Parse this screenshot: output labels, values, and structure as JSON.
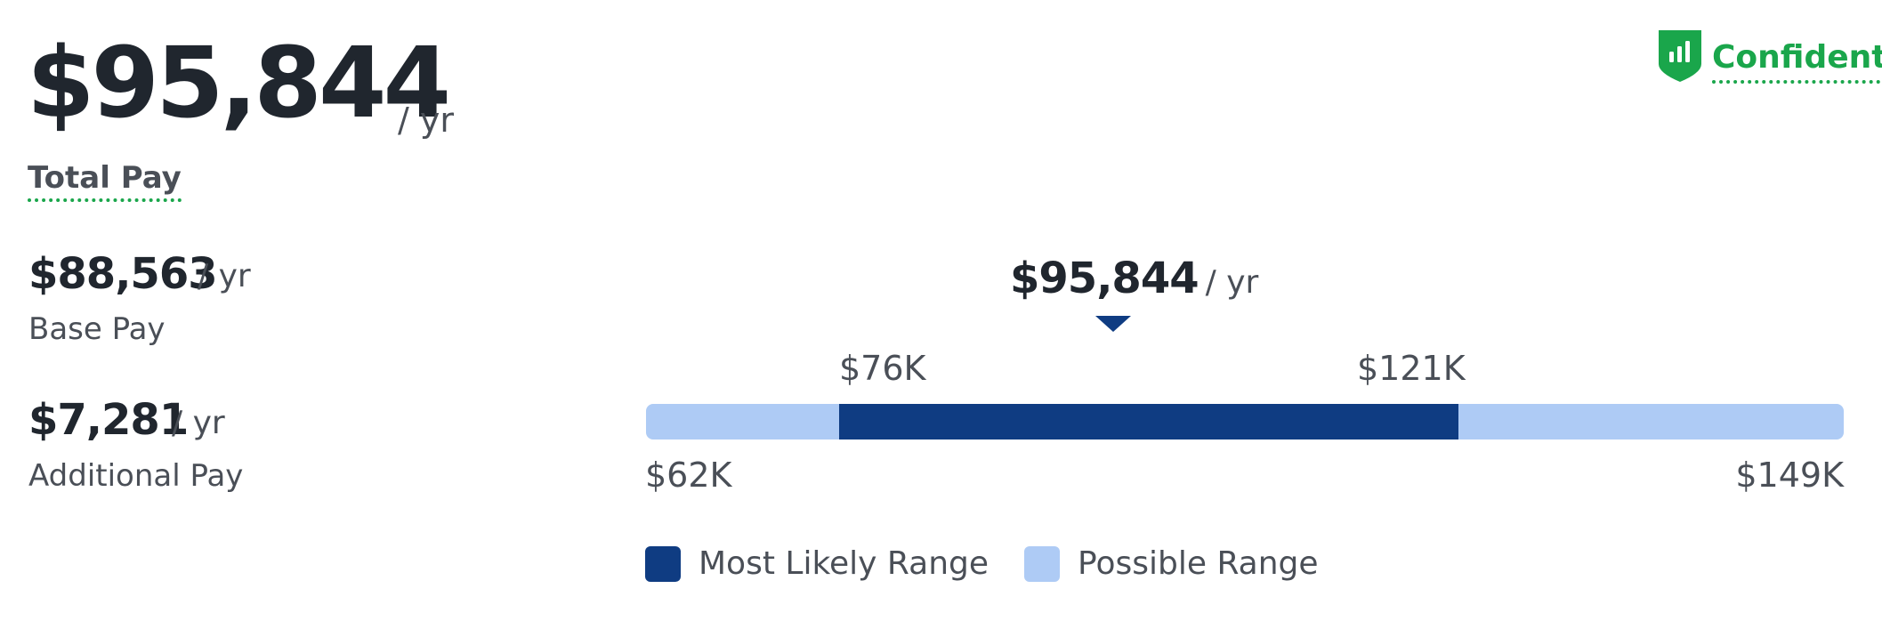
{
  "total": {
    "amount": "$95,844",
    "unit": "/ yr",
    "label": "Total Pay"
  },
  "base": {
    "amount": "$88,563",
    "unit": "/ yr",
    "label": "Base Pay"
  },
  "additional": {
    "amount": "$7,281",
    "unit": "/ yr",
    "label": "Additional Pay"
  },
  "confidence": {
    "label": "Confident",
    "icon": "bar-chart-shield-icon",
    "color": "#1aa64b"
  },
  "range": {
    "current_value": "$95,844",
    "current_unit": "/ yr",
    "likely_low_label": "$76K",
    "likely_high_label": "$121K",
    "min_label": "$62K",
    "max_label": "$149K",
    "min": 62000,
    "likely_low": 76000,
    "current": 95844,
    "likely_high": 121000,
    "max": 149000,
    "likely_color": "#0f3c82",
    "possible_color": "#aecbf5"
  },
  "legend": {
    "likely": "Most Likely Range",
    "possible": "Possible Range"
  }
}
